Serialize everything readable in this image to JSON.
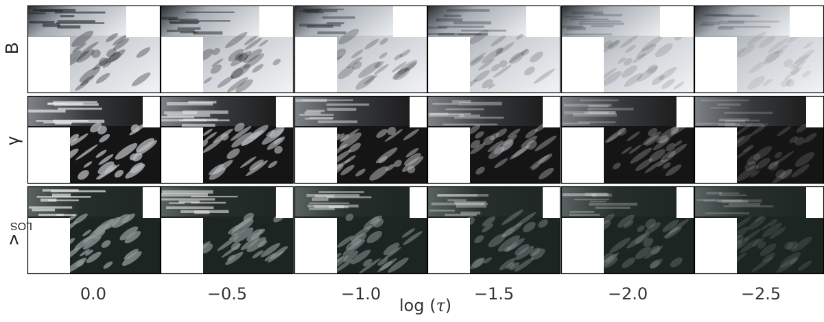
{
  "rows": [
    {
      "key": "B",
      "label": "B",
      "sub": ""
    },
    {
      "key": "gamma",
      "label": "γ",
      "sub": ""
    },
    {
      "key": "vlos",
      "label": "v",
      "sub": "LOS"
    }
  ],
  "columns": [
    "0.0",
    "−0.5",
    "−1.0",
    "−1.5",
    "−2.0",
    "−2.5"
  ],
  "xaxis": {
    "prefix": "log (",
    "symbol": "τ",
    "suffix": ")"
  },
  "colors": {
    "b_bright": "#f2f4f6",
    "b_mid": "#a8aeb6",
    "b_dark": "#1f2326",
    "gamma_bg": "#161515",
    "gamma_feature": "#b8bcbf",
    "vlos_bg": "#1d2523",
    "vlos_feature": "#8f9a98",
    "mask": "#ffffff",
    "frame": "#000000"
  }
}
